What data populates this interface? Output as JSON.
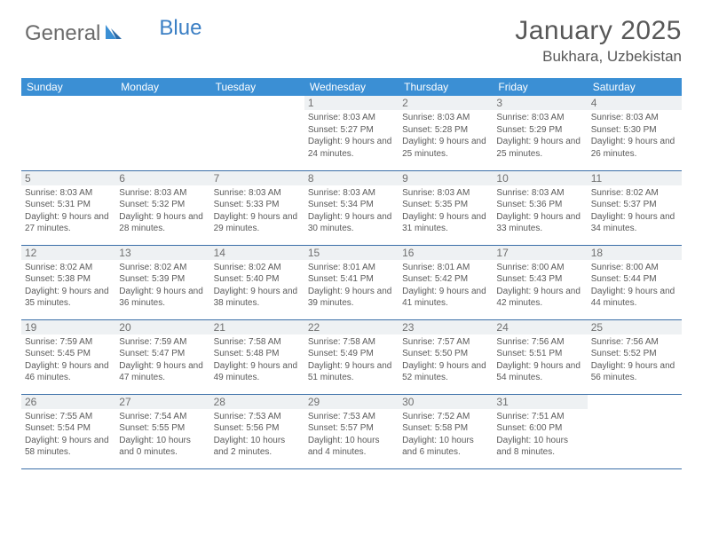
{
  "logo": {
    "general": "General",
    "blue": "Blue"
  },
  "title": "January 2025",
  "location": "Bukhara, Uzbekistan",
  "header_bg": "#3b8fd4",
  "row_divider": "#3b6fa8",
  "daynum_bg": "#eef1f3",
  "dow": [
    "Sunday",
    "Monday",
    "Tuesday",
    "Wednesday",
    "Thursday",
    "Friday",
    "Saturday"
  ],
  "weeks": [
    [
      null,
      null,
      null,
      {
        "n": "1",
        "sr": "8:03 AM",
        "ss": "5:27 PM",
        "dl": "9 hours and 24 minutes."
      },
      {
        "n": "2",
        "sr": "8:03 AM",
        "ss": "5:28 PM",
        "dl": "9 hours and 25 minutes."
      },
      {
        "n": "3",
        "sr": "8:03 AM",
        "ss": "5:29 PM",
        "dl": "9 hours and 25 minutes."
      },
      {
        "n": "4",
        "sr": "8:03 AM",
        "ss": "5:30 PM",
        "dl": "9 hours and 26 minutes."
      }
    ],
    [
      {
        "n": "5",
        "sr": "8:03 AM",
        "ss": "5:31 PM",
        "dl": "9 hours and 27 minutes."
      },
      {
        "n": "6",
        "sr": "8:03 AM",
        "ss": "5:32 PM",
        "dl": "9 hours and 28 minutes."
      },
      {
        "n": "7",
        "sr": "8:03 AM",
        "ss": "5:33 PM",
        "dl": "9 hours and 29 minutes."
      },
      {
        "n": "8",
        "sr": "8:03 AM",
        "ss": "5:34 PM",
        "dl": "9 hours and 30 minutes."
      },
      {
        "n": "9",
        "sr": "8:03 AM",
        "ss": "5:35 PM",
        "dl": "9 hours and 31 minutes."
      },
      {
        "n": "10",
        "sr": "8:03 AM",
        "ss": "5:36 PM",
        "dl": "9 hours and 33 minutes."
      },
      {
        "n": "11",
        "sr": "8:02 AM",
        "ss": "5:37 PM",
        "dl": "9 hours and 34 minutes."
      }
    ],
    [
      {
        "n": "12",
        "sr": "8:02 AM",
        "ss": "5:38 PM",
        "dl": "9 hours and 35 minutes."
      },
      {
        "n": "13",
        "sr": "8:02 AM",
        "ss": "5:39 PM",
        "dl": "9 hours and 36 minutes."
      },
      {
        "n": "14",
        "sr": "8:02 AM",
        "ss": "5:40 PM",
        "dl": "9 hours and 38 minutes."
      },
      {
        "n": "15",
        "sr": "8:01 AM",
        "ss": "5:41 PM",
        "dl": "9 hours and 39 minutes."
      },
      {
        "n": "16",
        "sr": "8:01 AM",
        "ss": "5:42 PM",
        "dl": "9 hours and 41 minutes."
      },
      {
        "n": "17",
        "sr": "8:00 AM",
        "ss": "5:43 PM",
        "dl": "9 hours and 42 minutes."
      },
      {
        "n": "18",
        "sr": "8:00 AM",
        "ss": "5:44 PM",
        "dl": "9 hours and 44 minutes."
      }
    ],
    [
      {
        "n": "19",
        "sr": "7:59 AM",
        "ss": "5:45 PM",
        "dl": "9 hours and 46 minutes."
      },
      {
        "n": "20",
        "sr": "7:59 AM",
        "ss": "5:47 PM",
        "dl": "9 hours and 47 minutes."
      },
      {
        "n": "21",
        "sr": "7:58 AM",
        "ss": "5:48 PM",
        "dl": "9 hours and 49 minutes."
      },
      {
        "n": "22",
        "sr": "7:58 AM",
        "ss": "5:49 PM",
        "dl": "9 hours and 51 minutes."
      },
      {
        "n": "23",
        "sr": "7:57 AM",
        "ss": "5:50 PM",
        "dl": "9 hours and 52 minutes."
      },
      {
        "n": "24",
        "sr": "7:56 AM",
        "ss": "5:51 PM",
        "dl": "9 hours and 54 minutes."
      },
      {
        "n": "25",
        "sr": "7:56 AM",
        "ss": "5:52 PM",
        "dl": "9 hours and 56 minutes."
      }
    ],
    [
      {
        "n": "26",
        "sr": "7:55 AM",
        "ss": "5:54 PM",
        "dl": "9 hours and 58 minutes."
      },
      {
        "n": "27",
        "sr": "7:54 AM",
        "ss": "5:55 PM",
        "dl": "10 hours and 0 minutes."
      },
      {
        "n": "28",
        "sr": "7:53 AM",
        "ss": "5:56 PM",
        "dl": "10 hours and 2 minutes."
      },
      {
        "n": "29",
        "sr": "7:53 AM",
        "ss": "5:57 PM",
        "dl": "10 hours and 4 minutes."
      },
      {
        "n": "30",
        "sr": "7:52 AM",
        "ss": "5:58 PM",
        "dl": "10 hours and 6 minutes."
      },
      {
        "n": "31",
        "sr": "7:51 AM",
        "ss": "6:00 PM",
        "dl": "10 hours and 8 minutes."
      },
      null
    ]
  ],
  "labels": {
    "sunrise": "Sunrise: ",
    "sunset": "Sunset: ",
    "daylight": "Daylight: "
  }
}
